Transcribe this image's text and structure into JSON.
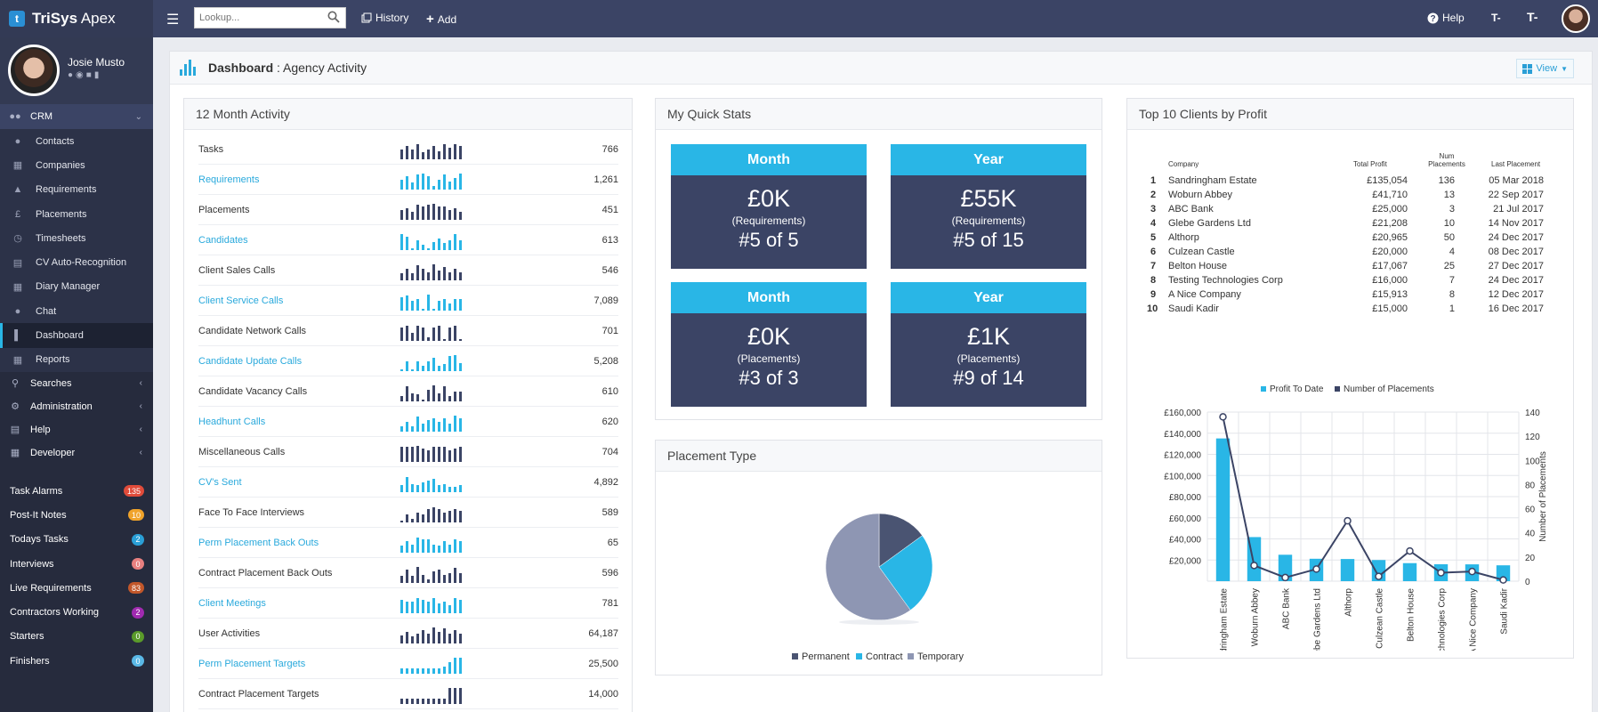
{
  "app": {
    "name_bold": "TriSys",
    "name_rest": " Apex",
    "logo_letter": "t"
  },
  "topbar": {
    "search_placeholder": "Lookup...",
    "history_label": "History",
    "add_label": "Add",
    "help_label": "Help",
    "font_smaller": "T-",
    "font_larger": "T-"
  },
  "user": {
    "name": "Josie Musto"
  },
  "sidebar": {
    "crm_label": "CRM",
    "items": [
      {
        "label": "Contacts",
        "icon": "contacts-icon"
      },
      {
        "label": "Companies",
        "icon": "companies-icon"
      },
      {
        "label": "Requirements",
        "icon": "requirements-icon"
      },
      {
        "label": "Placements",
        "icon": "placements-icon"
      },
      {
        "label": "Timesheets",
        "icon": "timesheets-icon"
      },
      {
        "label": "CV Auto-Recognition",
        "icon": "document-icon"
      },
      {
        "label": "Diary Manager",
        "icon": "calendar-icon"
      },
      {
        "label": "Chat",
        "icon": "chat-icon"
      },
      {
        "label": "Dashboard",
        "icon": "bar-chart-icon"
      },
      {
        "label": "Reports",
        "icon": "table-icon"
      }
    ],
    "sections": [
      {
        "label": "Searches",
        "icon": "search-icon"
      },
      {
        "label": "Administration",
        "icon": "gear-icon"
      },
      {
        "label": "Help",
        "icon": "book-icon"
      },
      {
        "label": "Developer",
        "icon": "code-icon"
      }
    ],
    "counters": [
      {
        "label": "Task Alarms",
        "count": "135",
        "color": "#e04b3a"
      },
      {
        "label": "Post-It Notes",
        "count": "10",
        "color": "#f0a32a"
      },
      {
        "label": "Todays Tasks",
        "count": "2",
        "color": "#2a9fd6"
      },
      {
        "label": "Interviews",
        "count": "0",
        "color": "#e88080"
      },
      {
        "label": "Live Requirements",
        "count": "83",
        "color": "#c2572a"
      },
      {
        "label": "Contractors Working",
        "count": "2",
        "color": "#a02ab0"
      },
      {
        "label": "Starters",
        "count": "0",
        "color": "#5a9a2a"
      },
      {
        "label": "Finishers",
        "count": "0",
        "color": "#5ab8e6"
      }
    ]
  },
  "dashboard": {
    "title_bold": "Dashboard",
    "title_rest": " : Agency Activity",
    "view_label": "View"
  },
  "activity": {
    "title": "12 Month Activity",
    "rows": [
      {
        "label": "Tasks",
        "value": "766",
        "link": false,
        "bars": [
          6,
          8,
          6,
          9,
          4,
          6,
          8,
          5,
          9,
          7,
          9,
          8
        ]
      },
      {
        "label": "Requirements",
        "value": "1,261",
        "link": true,
        "bars": [
          6,
          8,
          4,
          9,
          10,
          8,
          2,
          6,
          9,
          5,
          7,
          10
        ]
      },
      {
        "label": "Placements",
        "value": "451",
        "link": false,
        "bars": [
          6,
          7,
          5,
          9,
          8,
          9,
          10,
          8,
          8,
          6,
          7,
          5
        ]
      },
      {
        "label": "Candidates",
        "value": "613",
        "link": true,
        "bars": [
          10,
          8,
          1,
          6,
          3,
          1,
          5,
          7,
          4,
          6,
          10,
          6
        ]
      },
      {
        "label": "Client Sales Calls",
        "value": "546",
        "link": false,
        "bars": [
          4,
          7,
          4,
          9,
          7,
          5,
          10,
          6,
          8,
          5,
          7,
          5
        ]
      },
      {
        "label": "Client Service Calls",
        "value": "7,089",
        "link": true,
        "bars": [
          8,
          9,
          6,
          7,
          1,
          10,
          1,
          6,
          7,
          4,
          7,
          7
        ]
      },
      {
        "label": "Candidate Network Calls",
        "value": "701",
        "link": false,
        "bars": [
          8,
          9,
          5,
          9,
          8,
          2,
          8,
          9,
          1,
          8,
          9,
          1
        ]
      },
      {
        "label": "Candidate Update Calls",
        "value": "5,208",
        "link": true,
        "bars": [
          1,
          6,
          1,
          6,
          3,
          6,
          8,
          3,
          4,
          9,
          10,
          5
        ]
      },
      {
        "label": "Candidate Vacancy Calls",
        "value": "610",
        "link": false,
        "bars": [
          3,
          9,
          5,
          4,
          1,
          7,
          10,
          5,
          9,
          3,
          6,
          6
        ]
      },
      {
        "label": "Headhunt Calls",
        "value": "620",
        "link": true,
        "bars": [
          3,
          6,
          3,
          9,
          5,
          7,
          8,
          6,
          8,
          5,
          10,
          8
        ]
      },
      {
        "label": "Miscellaneous Calls",
        "value": "704",
        "link": false,
        "bars": [
          9,
          9,
          9,
          10,
          8,
          7,
          9,
          9,
          9,
          7,
          8,
          9
        ]
      },
      {
        "label": "CV's Sent",
        "value": "4,892",
        "link": true,
        "bars": [
          4,
          9,
          5,
          4,
          6,
          7,
          8,
          4,
          5,
          3,
          3,
          4
        ]
      },
      {
        "label": "Face To Face Interviews",
        "value": "589",
        "link": false,
        "bars": [
          1,
          5,
          2,
          6,
          5,
          8,
          9,
          8,
          6,
          7,
          8,
          7
        ]
      },
      {
        "label": "Perm Placement Back Outs",
        "value": "65",
        "link": true,
        "bars": [
          4,
          7,
          5,
          9,
          8,
          8,
          5,
          4,
          7,
          5,
          8,
          7
        ]
      },
      {
        "label": "Contract Placement Back Outs",
        "value": "596",
        "link": false,
        "bars": [
          4,
          8,
          4,
          10,
          5,
          2,
          7,
          8,
          5,
          6,
          9,
          6
        ]
      },
      {
        "label": "Client Meetings",
        "value": "781",
        "link": true,
        "bars": [
          8,
          7,
          7,
          9,
          8,
          7,
          9,
          6,
          7,
          5,
          9,
          8
        ]
      },
      {
        "label": "User Activities",
        "value": "64,187",
        "link": false,
        "bars": [
          5,
          7,
          4,
          6,
          8,
          6,
          10,
          7,
          9,
          6,
          8,
          6
        ]
      },
      {
        "label": "Perm Placement Targets",
        "value": "25,500",
        "link": true,
        "bars": [
          3,
          3,
          3,
          3,
          3,
          3,
          3,
          3,
          4,
          7,
          10,
          10
        ]
      },
      {
        "label": "Contract Placement Targets",
        "value": "14,000",
        "link": false,
        "bars": [
          3,
          3,
          3,
          3,
          3,
          3,
          3,
          3,
          3,
          10,
          10,
          10
        ]
      }
    ]
  },
  "quick_stats": {
    "title": "My Quick Stats",
    "boxes": [
      {
        "period": "Month",
        "value": "£0K",
        "kind": "(Requirements)",
        "rank": "#5 of 5"
      },
      {
        "period": "Year",
        "value": "£55K",
        "kind": "(Requirements)",
        "rank": "#5 of 15"
      },
      {
        "period": "Month",
        "value": "£0K",
        "kind": "(Placements)",
        "rank": "#3 of 3"
      },
      {
        "period": "Year",
        "value": "£1K",
        "kind": "(Placements)",
        "rank": "#9 of 14"
      }
    ]
  },
  "placement_type": {
    "title": "Placement Type",
    "legend": [
      "Permanent",
      "Contract",
      "Temporary"
    ],
    "colors": [
      "#4a5472",
      "#29b6e6",
      "#8e96b3"
    ]
  },
  "clients": {
    "title": "Top 10 Clients by Profit",
    "headers": {
      "company": "Company",
      "profit": "Total Profit",
      "num1": "Num",
      "num2": "Placements",
      "last": "Last Placement"
    },
    "rows": [
      {
        "rank": "1",
        "company": "Sandringham Estate",
        "profit": "£135,054",
        "num": "136",
        "last": "05 Mar 2018"
      },
      {
        "rank": "2",
        "company": "Woburn Abbey",
        "profit": "£41,710",
        "num": "13",
        "last": "22 Sep 2017"
      },
      {
        "rank": "3",
        "company": "ABC Bank",
        "profit": "£25,000",
        "num": "3",
        "last": "21 Jul 2017"
      },
      {
        "rank": "4",
        "company": "Glebe Gardens Ltd",
        "profit": "£21,208",
        "num": "10",
        "last": "14 Nov 2017"
      },
      {
        "rank": "5",
        "company": "Althorp",
        "profit": "£20,965",
        "num": "50",
        "last": "24 Dec 2017"
      },
      {
        "rank": "6",
        "company": "Culzean Castle",
        "profit": "£20,000",
        "num": "4",
        "last": "08 Dec 2017"
      },
      {
        "rank": "7",
        "company": "Belton House",
        "profit": "£17,067",
        "num": "25",
        "last": "27 Dec 2017"
      },
      {
        "rank": "8",
        "company": "Testing Technologies Corp",
        "profit": "£16,000",
        "num": "7",
        "last": "24 Dec 2017"
      },
      {
        "rank": "9",
        "company": "A Nice Company",
        "profit": "£15,913",
        "num": "8",
        "last": "12 Dec 2017"
      },
      {
        "rank": "10",
        "company": "Saudi Kadir",
        "profit": "£15,000",
        "num": "1",
        "last": "16 Dec 2017"
      }
    ]
  },
  "chart_data": [
    {
      "type": "bar",
      "title": "Top 10 Clients by Profit",
      "categories": [
        "Sandringham Estate",
        "Woburn Abbey",
        "ABC Bank",
        "Glebe Gardens Ltd",
        "Althorp",
        "Culzean Castle",
        "Belton House",
        "Testing Technologies Corp",
        "A Nice Company",
        "Saudi Kadir"
      ],
      "series": [
        {
          "name": "Profit To Date",
          "type": "bar",
          "axis": "left",
          "color": "#29b6e6",
          "values": [
            135054,
            41710,
            25000,
            21208,
            20965,
            20000,
            17067,
            16000,
            15913,
            15000
          ]
        },
        {
          "name": "Number of Placements",
          "type": "line",
          "axis": "right",
          "color": "#3b4465",
          "values": [
            136,
            13,
            3,
            10,
            50,
            4,
            25,
            7,
            8,
            1
          ]
        }
      ],
      "ylim": [
        0,
        160000
      ],
      "y2lim": [
        0,
        140
      ],
      "yticks": [
        "£20,000",
        "£40,000",
        "£60,000",
        "£80,000",
        "£100,000",
        "£120,000",
        "£140,000",
        "£160,000"
      ],
      "y2ticks": [
        "0",
        "20",
        "40",
        "60",
        "80",
        "100",
        "120",
        "140"
      ],
      "y2label": "Number of Placements",
      "legend_position": "top",
      "grid": true
    },
    {
      "type": "pie",
      "title": "Placement Type",
      "categories": [
        "Permanent",
        "Contract",
        "Temporary"
      ],
      "values": [
        15,
        25,
        60
      ]
    }
  ]
}
